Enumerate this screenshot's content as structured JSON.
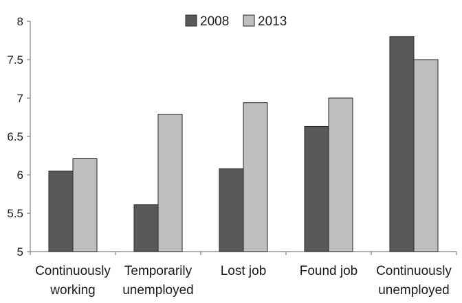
{
  "chart_data": {
    "type": "bar",
    "title": "",
    "xlabel": "",
    "ylabel": "",
    "ylim": [
      5,
      8
    ],
    "yticks": [
      "5",
      "5.5",
      "6",
      "6.5",
      "7",
      "7.5",
      "8"
    ],
    "grid": false,
    "legend_position": "top-center",
    "categories": [
      [
        "Continuously",
        "working"
      ],
      [
        "Temporarily",
        "unemployed"
      ],
      [
        "Lost job"
      ],
      [
        "Found job"
      ],
      [
        "Continuously",
        "unemployed"
      ]
    ],
    "series": [
      {
        "name": "2008",
        "color": "#595959",
        "values": [
          6.05,
          5.61,
          6.08,
          6.63,
          7.8
        ]
      },
      {
        "name": "2013",
        "color": "#bfbfbf",
        "values": [
          6.21,
          6.79,
          6.94,
          7.0,
          7.5
        ]
      }
    ]
  }
}
